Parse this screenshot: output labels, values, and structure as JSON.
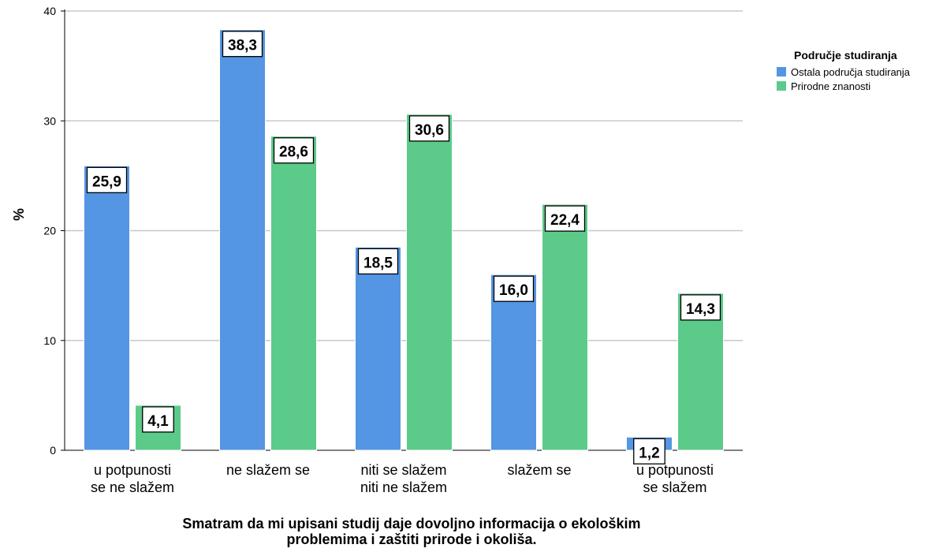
{
  "chart_data": {
    "type": "bar",
    "ylabel": "%",
    "xlabel_lines": [
      "Smatram da mi upisani studij daje dovoljno informacija o ekološkim",
      "problemima i zaštiti prirode i okoliša."
    ],
    "ylim": [
      0,
      40
    ],
    "yticks": [
      "0",
      "10",
      "20",
      "30",
      "40"
    ],
    "categories": [
      [
        "u potpunosti",
        "se ne slažem"
      ],
      [
        "ne slažem se"
      ],
      [
        "niti se slažem",
        "niti ne slažem"
      ],
      [
        "slažem se"
      ],
      [
        "u potpunosti",
        "se slažem"
      ]
    ],
    "series": [
      {
        "name": "Ostala područja studiranja",
        "color": "#5495e4",
        "values": [
          25.9,
          38.3,
          18.5,
          16.0,
          1.2
        ],
        "labels": [
          "25,9",
          "38,3",
          "18,5",
          "16,0",
          "1,2"
        ]
      },
      {
        "name": "Prirodne znanosti",
        "color": "#5ccb8a",
        "values": [
          4.1,
          28.6,
          30.6,
          22.4,
          14.3
        ],
        "labels": [
          "4,1",
          "28,6",
          "30,6",
          "22,4",
          "14,3"
        ]
      }
    ],
    "legend_title": "Područje studiranja",
    "legend_position": "top-right",
    "grid": true
  }
}
